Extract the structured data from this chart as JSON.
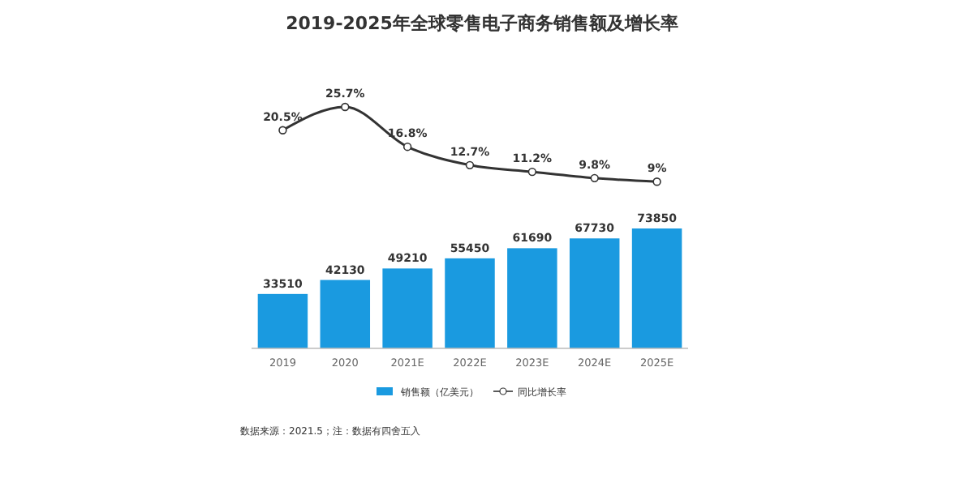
{
  "chart_data": [
    {
      "type": "line",
      "title": "2019-2025年全球零售电子商务销售额及增长率",
      "categories": [
        null,
        null,
        null,
        null,
        null,
        null,
        null
      ],
      "series": [
        {
          "name": "同比增长率",
          "color": "#333333",
          "values": [
            20.5,
            25.7,
            16.8,
            12.7,
            11.2,
            9.8,
            9
          ],
          "value_labels": [
            "20.5%",
            "25.7%",
            "16.8%",
            "12.7%",
            "11.2%",
            "9.8%",
            "9%"
          ]
        }
      ],
      "marker": "circle",
      "legend": "bottom"
    },
    {
      "type": "bar",
      "categories": [
        "2019",
        "2020",
        "2021E",
        "2022E",
        "2023E",
        "2024E",
        "2025E"
      ],
      "series": [
        {
          "name": "销售额（亿美元）",
          "color": "#1a9ae0",
          "values": [
            33510,
            42130,
            49210,
            55450,
            61690,
            67730,
            73850
          ],
          "value_labels": [
            "33510",
            "42130",
            "49210",
            "55450",
            "61690",
            "67730",
            "73850"
          ]
        }
      ],
      "legend": "bottom",
      "annotations": [
        "数据来源：2021.5；注：数据有四舍五入"
      ]
    }
  ]
}
